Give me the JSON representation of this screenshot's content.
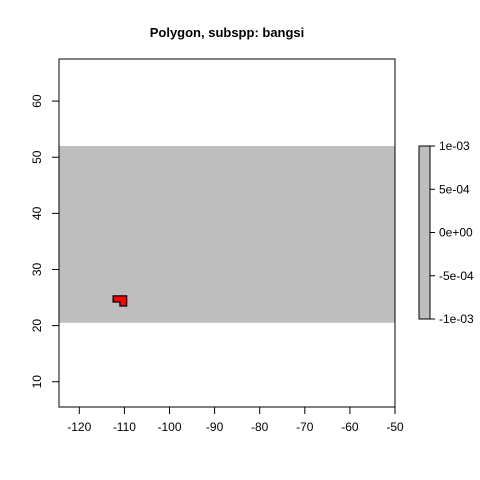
{
  "chart_data": {
    "type": "heatmap",
    "title": "Polygon, subspp: bangsi",
    "xlabel": "",
    "ylabel": "",
    "xlim": [
      -124.5,
      -50
    ],
    "ylim": [
      5.5,
      67.5
    ],
    "x_ticks": [
      -120,
      -110,
      -100,
      -90,
      -80,
      -70,
      -60,
      -50
    ],
    "y_ticks": [
      10,
      20,
      30,
      40,
      50,
      60
    ],
    "raster": {
      "xmin": -124.5,
      "xmax": -50,
      "ymin": 20.5,
      "ymax": 52,
      "value": 0,
      "color": "#bebebe"
    },
    "polygon": {
      "color": "#ff0000",
      "outline": "#000000",
      "points": [
        [
          -112.5,
          25.3
        ],
        [
          -109.5,
          25.3
        ],
        [
          -109.5,
          23.5
        ],
        [
          -111,
          23.5
        ],
        [
          -111,
          24.2
        ],
        [
          -112.5,
          24.2
        ]
      ]
    },
    "legend": {
      "position": "right",
      "range": [
        -0.001,
        0.001
      ],
      "ticks": [
        -0.001,
        -0.0005,
        0,
        0.0005,
        0.001
      ],
      "tick_labels": [
        "-1e-03",
        "-5e-04",
        "0e+00",
        "5e-04",
        "1e-03"
      ],
      "color": "#bebebe"
    },
    "grid": false
  }
}
